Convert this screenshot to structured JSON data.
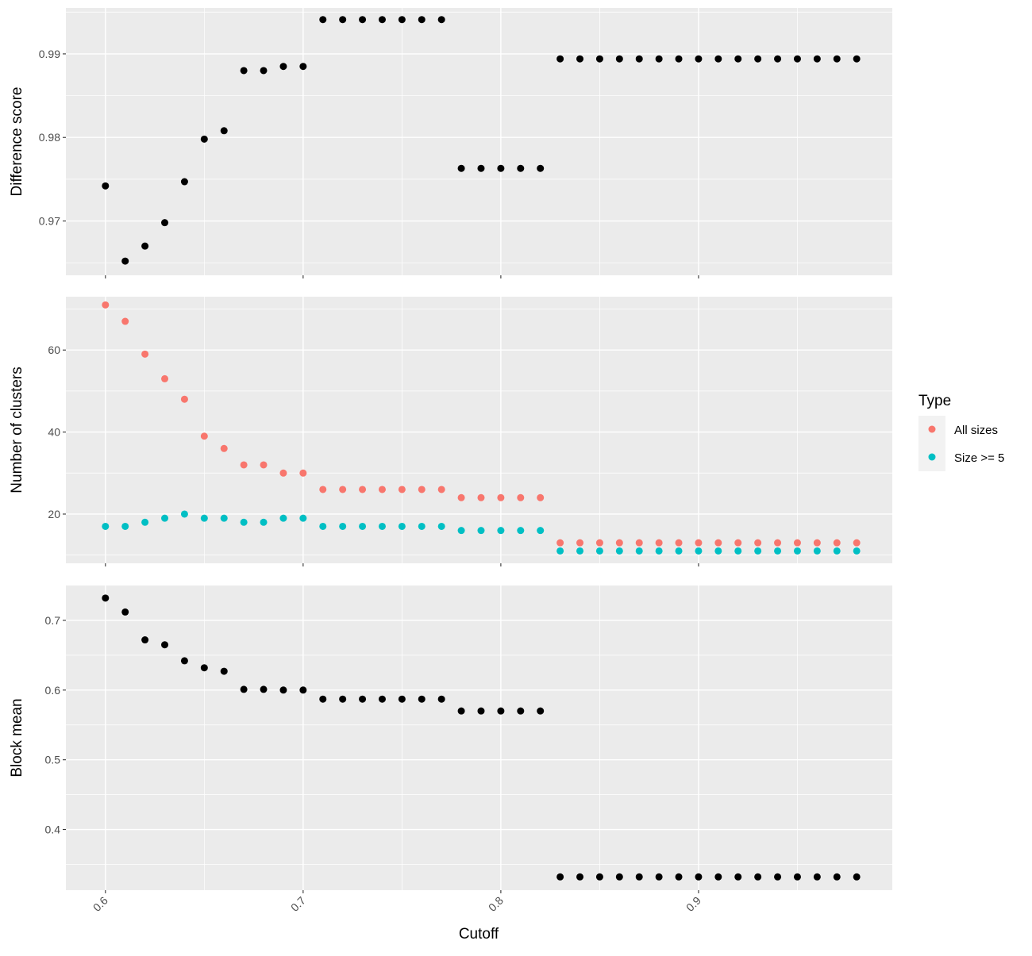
{
  "colors": {
    "panel_background": "#ebebeb",
    "grid_major": "#ffffff",
    "grid_minor": "#f5f5f5",
    "tick_text": "#4d4d4d",
    "axis_tick": "#333333",
    "point_black": "#000000",
    "all_sizes": "#f8766d",
    "size_ge_5": "#00bfc4"
  },
  "x_axis": {
    "label": "Cutoff",
    "ticks": [
      "0.6",
      "0.7",
      "0.8",
      "0.9"
    ]
  },
  "legend": {
    "title": "Type",
    "items": [
      {
        "label": "All sizes",
        "color": "#f8766d"
      },
      {
        "label": "Size >= 5",
        "color": "#00bfc4"
      }
    ]
  },
  "chart_data": [
    {
      "type": "scatter",
      "ylabel": "Difference score",
      "xlim": [
        0.58,
        0.998
      ],
      "ylim": [
        0.9635,
        0.9955
      ],
      "y_ticks": [
        "0.97",
        "0.98",
        "0.99"
      ],
      "x": [
        0.6,
        0.61,
        0.62,
        0.63,
        0.64,
        0.65,
        0.66,
        0.67,
        0.68,
        0.69,
        0.7,
        0.71,
        0.72,
        0.73,
        0.74,
        0.75,
        0.76,
        0.77,
        0.78,
        0.79,
        0.8,
        0.81,
        0.82,
        0.83,
        0.84,
        0.85,
        0.86,
        0.87,
        0.88,
        0.89,
        0.9,
        0.91,
        0.92,
        0.93,
        0.94,
        0.95,
        0.96,
        0.97,
        0.98
      ],
      "series": [
        {
          "values": [
            0.9742,
            0.9652,
            0.967,
            0.9698,
            0.9747,
            0.9798,
            0.9808,
            0.988,
            0.988,
            0.9885,
            0.9885,
            0.9941,
            0.9941,
            0.9941,
            0.9941,
            0.9941,
            0.9941,
            0.9941,
            0.9763,
            0.9763,
            0.9763,
            0.9763,
            0.9763,
            0.9894,
            0.9894,
            0.9894,
            0.9894,
            0.9894,
            0.9894,
            0.9894,
            0.9894,
            0.9894,
            0.9894,
            0.9894,
            0.9894,
            0.9894,
            0.9894,
            0.9894,
            0.9894
          ]
        }
      ]
    },
    {
      "type": "scatter",
      "ylabel": "Number of clusters",
      "xlim": [
        0.58,
        0.998
      ],
      "ylim": [
        8,
        73
      ],
      "y_ticks": [
        "20",
        "40",
        "60"
      ],
      "legend_title": "Type",
      "x": [
        0.6,
        0.61,
        0.62,
        0.63,
        0.64,
        0.65,
        0.66,
        0.67,
        0.68,
        0.69,
        0.7,
        0.71,
        0.72,
        0.73,
        0.74,
        0.75,
        0.76,
        0.77,
        0.78,
        0.79,
        0.8,
        0.81,
        0.82,
        0.83,
        0.84,
        0.85,
        0.86,
        0.87,
        0.88,
        0.89,
        0.9,
        0.91,
        0.92,
        0.93,
        0.94,
        0.95,
        0.96,
        0.97,
        0.98
      ],
      "series": [
        {
          "name": "All sizes",
          "values": [
            71,
            67,
            59,
            53,
            48,
            39,
            36,
            32,
            32,
            30,
            30,
            26,
            26,
            26,
            26,
            26,
            26,
            26,
            24,
            24,
            24,
            24,
            24,
            13,
            13,
            13,
            13,
            13,
            13,
            13,
            13,
            13,
            13,
            13,
            13,
            13,
            13,
            13,
            13
          ]
        },
        {
          "name": "Size >= 5",
          "values": [
            17,
            17,
            18,
            19,
            20,
            19,
            19,
            18,
            18,
            19,
            19,
            17,
            17,
            17,
            17,
            17,
            17,
            17,
            16,
            16,
            16,
            16,
            16,
            11,
            11,
            11,
            11,
            11,
            11,
            11,
            11,
            11,
            11,
            11,
            11,
            11,
            11,
            11,
            11
          ]
        }
      ]
    },
    {
      "type": "scatter",
      "ylabel": "Block mean",
      "xlim": [
        0.58,
        0.998
      ],
      "ylim": [
        0.313,
        0.75
      ],
      "y_ticks": [
        "0.4",
        "0.5",
        "0.6",
        "0.7"
      ],
      "x": [
        0.6,
        0.61,
        0.62,
        0.63,
        0.64,
        0.65,
        0.66,
        0.67,
        0.68,
        0.69,
        0.7,
        0.71,
        0.72,
        0.73,
        0.74,
        0.75,
        0.76,
        0.77,
        0.78,
        0.79,
        0.8,
        0.81,
        0.82,
        0.83,
        0.84,
        0.85,
        0.86,
        0.87,
        0.88,
        0.89,
        0.9,
        0.91,
        0.92,
        0.93,
        0.94,
        0.95,
        0.96,
        0.97,
        0.98
      ],
      "series": [
        {
          "values": [
            0.732,
            0.712,
            0.672,
            0.665,
            0.642,
            0.632,
            0.627,
            0.601,
            0.601,
            0.6,
            0.6,
            0.587,
            0.587,
            0.587,
            0.587,
            0.587,
            0.587,
            0.587,
            0.57,
            0.57,
            0.57,
            0.57,
            0.57,
            0.332,
            0.332,
            0.332,
            0.332,
            0.332,
            0.332,
            0.332,
            0.332,
            0.332,
            0.332,
            0.332,
            0.332,
            0.332,
            0.332,
            0.332,
            0.332
          ]
        }
      ]
    }
  ]
}
